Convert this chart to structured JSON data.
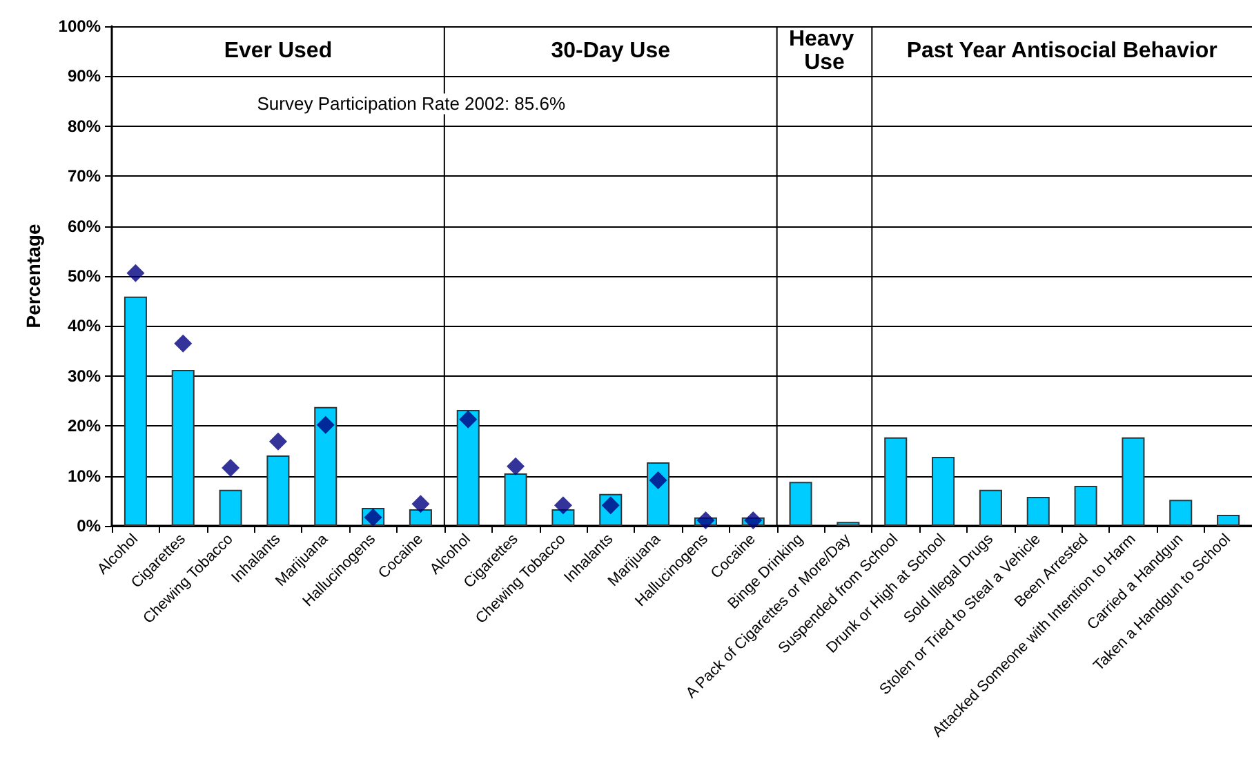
{
  "chart_data": {
    "type": "bar",
    "ylabel": "Percentage",
    "categories": [
      "Alcohol",
      "Cigarettes",
      "Chewing Tobacco",
      "Inhalants",
      "Marijuana",
      "Hallucinogens",
      "Cocaine",
      "Alcohol",
      "Cigarettes",
      "Chewing Tobacco",
      "Inhalants",
      "Marijuana",
      "Hallucinogens",
      "Cocaine",
      "Binge Drinking",
      "A Pack of Cigarettes or More/Day",
      "Suspended from School",
      "Drunk or High at School",
      "Sold Illegal Drugs",
      "Stolen or Tried to Steal a Vehicle",
      "Been Arrested",
      "Attacked Someone with Intention to Harm",
      "Carried a Handgun",
      "Taken a Handgun to School"
    ],
    "series": [
      {
        "color": "#00ccff",
        "values": [
          45.9,
          31.2,
          7.2,
          14.1,
          23.8,
          3.6,
          3.3,
          23.2,
          10.5,
          3.3,
          6.4,
          12.7,
          1.7,
          1.7,
          8.8,
          0.8,
          17.7,
          13.8,
          7.2,
          5.8,
          8.0,
          17.7,
          5.2,
          2.2
        ]
      },
      {
        "type": "scatter",
        "color": "#000080",
        "values": [
          50.6,
          36.5,
          11.6,
          16.9,
          20.2,
          1.7,
          4.4,
          21.3,
          11.9,
          4.1,
          4.1,
          9.1,
          1.1,
          1.1,
          null,
          null,
          null,
          null,
          null,
          null,
          null,
          null,
          null,
          null
        ]
      }
    ],
    "marker": "diamond",
    "ylim": [
      0,
      100
    ],
    "yticks": [
      {
        "value": 0,
        "label": "0%"
      },
      {
        "value": 10,
        "label": "10%"
      },
      {
        "value": 20,
        "label": "20%"
      },
      {
        "value": 30,
        "label": "30%"
      },
      {
        "value": 40,
        "label": "40%"
      },
      {
        "value": 50,
        "label": "50%"
      },
      {
        "value": 60,
        "label": "60%"
      },
      {
        "value": 70,
        "label": "70%"
      },
      {
        "value": 80,
        "label": "80%"
      },
      {
        "value": 90,
        "label": "90%"
      },
      {
        "value": 100,
        "label": "100%"
      }
    ],
    "grid": "y",
    "annotations": [
      "Ever Used",
      "30-Day Use",
      "Heavy Use",
      "Past Year Antisocial Behavior",
      "Survey Participation Rate 2002: 85.6%"
    ]
  }
}
